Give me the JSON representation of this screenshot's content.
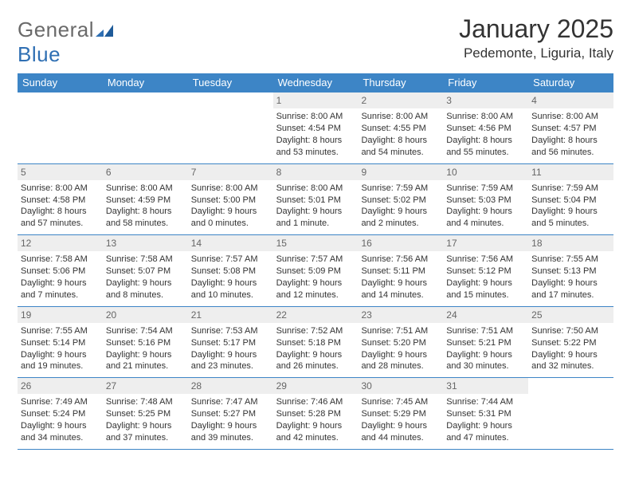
{
  "brand": {
    "word1": "General",
    "word2": "Blue"
  },
  "title": "January 2025",
  "location": "Pedemonte, Liguria, Italy",
  "colors": {
    "header_bg": "#3d85c6",
    "header_text": "#ffffff",
    "daynum_bg": "#eeeeee",
    "daynum_text": "#666666",
    "rule": "#3d85c6",
    "logo_gray": "#6a6a6a",
    "logo_blue": "#2f6fb3"
  },
  "daysOfWeek": [
    "Sunday",
    "Monday",
    "Tuesday",
    "Wednesday",
    "Thursday",
    "Friday",
    "Saturday"
  ],
  "weeks": [
    [
      null,
      null,
      null,
      {
        "n": "1",
        "sunrise": "8:00 AM",
        "sunset": "4:54 PM",
        "dl_h": "8",
        "dl_m": "53"
      },
      {
        "n": "2",
        "sunrise": "8:00 AM",
        "sunset": "4:55 PM",
        "dl_h": "8",
        "dl_m": "54"
      },
      {
        "n": "3",
        "sunrise": "8:00 AM",
        "sunset": "4:56 PM",
        "dl_h": "8",
        "dl_m": "55"
      },
      {
        "n": "4",
        "sunrise": "8:00 AM",
        "sunset": "4:57 PM",
        "dl_h": "8",
        "dl_m": "56"
      }
    ],
    [
      {
        "n": "5",
        "sunrise": "8:00 AM",
        "sunset": "4:58 PM",
        "dl_h": "8",
        "dl_m": "57"
      },
      {
        "n": "6",
        "sunrise": "8:00 AM",
        "sunset": "4:59 PM",
        "dl_h": "8",
        "dl_m": "58"
      },
      {
        "n": "7",
        "sunrise": "8:00 AM",
        "sunset": "5:00 PM",
        "dl_h": "9",
        "dl_m": "0"
      },
      {
        "n": "8",
        "sunrise": "8:00 AM",
        "sunset": "5:01 PM",
        "dl_h": "9",
        "dl_m": "1"
      },
      {
        "n": "9",
        "sunrise": "7:59 AM",
        "sunset": "5:02 PM",
        "dl_h": "9",
        "dl_m": "2"
      },
      {
        "n": "10",
        "sunrise": "7:59 AM",
        "sunset": "5:03 PM",
        "dl_h": "9",
        "dl_m": "4"
      },
      {
        "n": "11",
        "sunrise": "7:59 AM",
        "sunset": "5:04 PM",
        "dl_h": "9",
        "dl_m": "5"
      }
    ],
    [
      {
        "n": "12",
        "sunrise": "7:58 AM",
        "sunset": "5:06 PM",
        "dl_h": "9",
        "dl_m": "7"
      },
      {
        "n": "13",
        "sunrise": "7:58 AM",
        "sunset": "5:07 PM",
        "dl_h": "9",
        "dl_m": "8"
      },
      {
        "n": "14",
        "sunrise": "7:57 AM",
        "sunset": "5:08 PM",
        "dl_h": "9",
        "dl_m": "10"
      },
      {
        "n": "15",
        "sunrise": "7:57 AM",
        "sunset": "5:09 PM",
        "dl_h": "9",
        "dl_m": "12"
      },
      {
        "n": "16",
        "sunrise": "7:56 AM",
        "sunset": "5:11 PM",
        "dl_h": "9",
        "dl_m": "14"
      },
      {
        "n": "17",
        "sunrise": "7:56 AM",
        "sunset": "5:12 PM",
        "dl_h": "9",
        "dl_m": "15"
      },
      {
        "n": "18",
        "sunrise": "7:55 AM",
        "sunset": "5:13 PM",
        "dl_h": "9",
        "dl_m": "17"
      }
    ],
    [
      {
        "n": "19",
        "sunrise": "7:55 AM",
        "sunset": "5:14 PM",
        "dl_h": "9",
        "dl_m": "19"
      },
      {
        "n": "20",
        "sunrise": "7:54 AM",
        "sunset": "5:16 PM",
        "dl_h": "9",
        "dl_m": "21"
      },
      {
        "n": "21",
        "sunrise": "7:53 AM",
        "sunset": "5:17 PM",
        "dl_h": "9",
        "dl_m": "23"
      },
      {
        "n": "22",
        "sunrise": "7:52 AM",
        "sunset": "5:18 PM",
        "dl_h": "9",
        "dl_m": "26"
      },
      {
        "n": "23",
        "sunrise": "7:51 AM",
        "sunset": "5:20 PM",
        "dl_h": "9",
        "dl_m": "28"
      },
      {
        "n": "24",
        "sunrise": "7:51 AM",
        "sunset": "5:21 PM",
        "dl_h": "9",
        "dl_m": "30"
      },
      {
        "n": "25",
        "sunrise": "7:50 AM",
        "sunset": "5:22 PM",
        "dl_h": "9",
        "dl_m": "32"
      }
    ],
    [
      {
        "n": "26",
        "sunrise": "7:49 AM",
        "sunset": "5:24 PM",
        "dl_h": "9",
        "dl_m": "34"
      },
      {
        "n": "27",
        "sunrise": "7:48 AM",
        "sunset": "5:25 PM",
        "dl_h": "9",
        "dl_m": "37"
      },
      {
        "n": "28",
        "sunrise": "7:47 AM",
        "sunset": "5:27 PM",
        "dl_h": "9",
        "dl_m": "39"
      },
      {
        "n": "29",
        "sunrise": "7:46 AM",
        "sunset": "5:28 PM",
        "dl_h": "9",
        "dl_m": "42"
      },
      {
        "n": "30",
        "sunrise": "7:45 AM",
        "sunset": "5:29 PM",
        "dl_h": "9",
        "dl_m": "44"
      },
      {
        "n": "31",
        "sunrise": "7:44 AM",
        "sunset": "5:31 PM",
        "dl_h": "9",
        "dl_m": "47"
      },
      null
    ]
  ],
  "labels": {
    "sunrise": "Sunrise:",
    "sunset": "Sunset:",
    "daylight": "Daylight:",
    "hours": "hours",
    "and": "and",
    "minutes_singular": "minute.",
    "minutes_plural": "minutes."
  }
}
